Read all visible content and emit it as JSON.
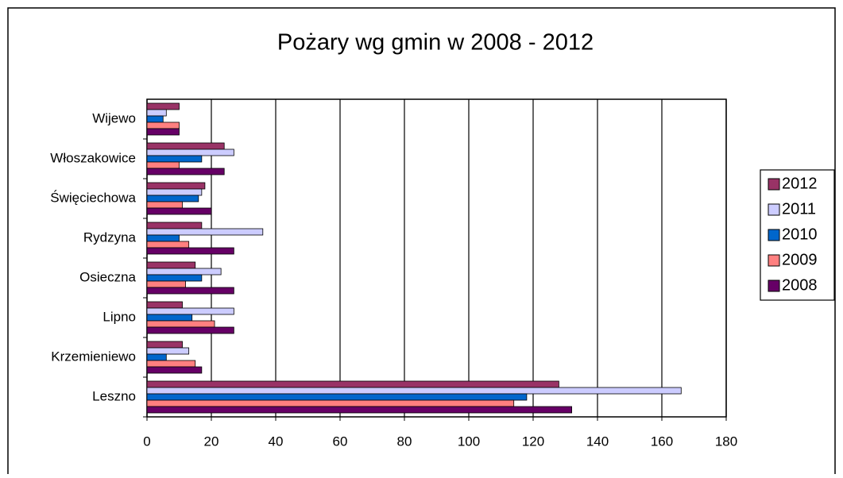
{
  "chart_data": {
    "type": "bar",
    "orientation": "horizontal",
    "title": "Pożary wg gmin w 2008 - 2012",
    "categories": [
      "Leszno",
      "Krzemieniewo",
      "Lipno",
      "Osieczna",
      "Rydzyna",
      "Święciechowa",
      "Włoszakowice",
      "Wijewo"
    ],
    "series": [
      {
        "name": "2012",
        "color": "#993366",
        "values": [
          128,
          11,
          11,
          15,
          17,
          18,
          24,
          10
        ]
      },
      {
        "name": "2011",
        "color": "#ccccff",
        "values": [
          166,
          13,
          27,
          23,
          36,
          17,
          27,
          6
        ]
      },
      {
        "name": "2010",
        "color": "#0066cc",
        "values": [
          118,
          6,
          14,
          17,
          10,
          16,
          17,
          5
        ]
      },
      {
        "name": "2009",
        "color": "#ff8080",
        "values": [
          114,
          15,
          21,
          12,
          13,
          11,
          10,
          10
        ]
      },
      {
        "name": "2008",
        "color": "#660066",
        "values": [
          132,
          17,
          27,
          27,
          27,
          20,
          24,
          10
        ]
      }
    ],
    "xlim": [
      0,
      180
    ],
    "xticks": [
      0,
      20,
      40,
      60,
      80,
      100,
      120,
      140,
      160,
      180
    ],
    "grid": true,
    "legend": "right"
  }
}
